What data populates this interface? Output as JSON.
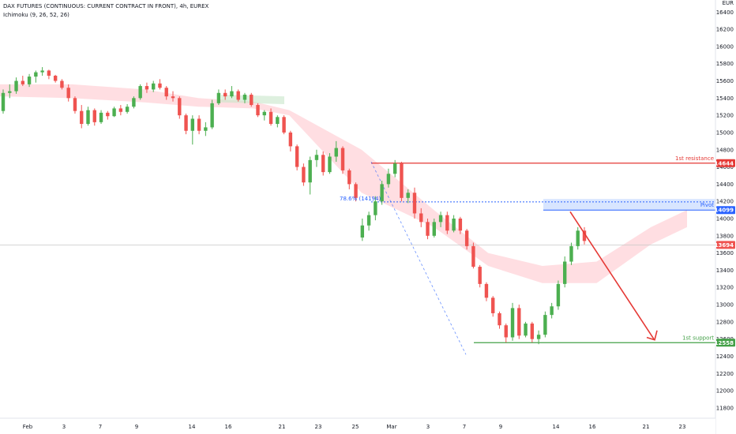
{
  "header": {
    "title": "DAX FUTURES (CONTINUOUS: CURRENT CONTRACT IN FRONT), 4h, EUREX",
    "indicator": "Ichimoku (9, 26, 52, 26)"
  },
  "colors": {
    "up": "#26a69a",
    "down": "#ef5350",
    "up_candle": "#4caf50",
    "resistance": "#e53935",
    "support": "#43a047",
    "pivot": "#2962ff",
    "cloud_bear": "#ffcdd2",
    "cloud_bull": "#c8e6c9",
    "current_price": "#ef5350"
  },
  "chart_data": {
    "type": "candlestick",
    "currency": "EUR",
    "ylim": [
      11680,
      16540
    ],
    "y_ticks": [
      11800,
      12000,
      12200,
      12400,
      12600,
      12800,
      13000,
      13200,
      13400,
      13600,
      13800,
      14000,
      14200,
      14400,
      14600,
      14800,
      15000,
      15200,
      15400,
      15600,
      15800,
      16000,
      16200,
      16400
    ],
    "x_ticks": [
      {
        "label": "Feb",
        "bar": 0
      },
      {
        "label": "3",
        "bar": 10
      },
      {
        "label": "7",
        "bar": 15
      },
      {
        "label": "9",
        "bar": 20
      },
      {
        "label": "14",
        "bar": 30
      },
      {
        "label": "16",
        "bar": 35
      },
      {
        "label": "21",
        "bar": 45
      },
      {
        "label": "23",
        "bar": 50
      },
      {
        "label": "25",
        "bar": 55
      },
      {
        "label": "Mar",
        "bar": 60
      },
      {
        "label": "3",
        "bar": 65
      },
      {
        "label": "7",
        "bar": 70
      },
      {
        "label": "9",
        "bar": 75
      },
      {
        "label": "14",
        "bar": 85
      },
      {
        "label": "16",
        "bar": 90
      },
      {
        "label": "21",
        "bar": 100
      },
      {
        "label": "23",
        "bar": 105
      }
    ],
    "candles": [
      [
        15250,
        15500,
        15220,
        15460
      ],
      [
        15460,
        15560,
        15400,
        15480
      ],
      [
        15480,
        15640,
        15450,
        15600
      ],
      [
        15600,
        15660,
        15540,
        15560
      ],
      [
        15560,
        15680,
        15530,
        15650
      ],
      [
        15650,
        15720,
        15580,
        15700
      ],
      [
        15700,
        15760,
        15660,
        15720
      ],
      [
        15720,
        15730,
        15620,
        15660
      ],
      [
        15660,
        15670,
        15580,
        15600
      ],
      [
        15600,
        15620,
        15500,
        15520
      ],
      [
        15520,
        15560,
        15360,
        15400
      ],
      [
        15400,
        15420,
        15220,
        15250
      ],
      [
        15250,
        15320,
        15050,
        15100
      ],
      [
        15100,
        15300,
        15080,
        15260
      ],
      [
        15260,
        15280,
        15080,
        15120
      ],
      [
        15120,
        15260,
        15100,
        15230
      ],
      [
        15230,
        15250,
        15150,
        15190
      ],
      [
        15190,
        15300,
        15180,
        15280
      ],
      [
        15280,
        15320,
        15200,
        15240
      ],
      [
        15240,
        15330,
        15220,
        15300
      ],
      [
        15300,
        15420,
        15280,
        15400
      ],
      [
        15400,
        15560,
        15380,
        15540
      ],
      [
        15540,
        15580,
        15460,
        15500
      ],
      [
        15500,
        15600,
        15470,
        15570
      ],
      [
        15570,
        15620,
        15500,
        15520
      ],
      [
        15520,
        15540,
        15380,
        15420
      ],
      [
        15420,
        15480,
        15360,
        15400
      ],
      [
        15400,
        15420,
        15160,
        15200
      ],
      [
        15200,
        15220,
        14980,
        15020
      ],
      [
        15020,
        15200,
        14860,
        15160
      ],
      [
        15160,
        15200,
        14980,
        15020
      ],
      [
        15020,
        15120,
        14960,
        15060
      ],
      [
        15060,
        15380,
        15040,
        15340
      ],
      [
        15340,
        15500,
        15320,
        15460
      ],
      [
        15460,
        15500,
        15380,
        15420
      ],
      [
        15420,
        15540,
        15400,
        15480
      ],
      [
        15480,
        15500,
        15360,
        15380
      ],
      [
        15380,
        15460,
        15340,
        15440
      ],
      [
        15440,
        15460,
        15300,
        15320
      ],
      [
        15320,
        15340,
        15180,
        15200
      ],
      [
        15200,
        15260,
        15140,
        15240
      ],
      [
        15240,
        15280,
        15080,
        15100
      ],
      [
        15100,
        15200,
        15060,
        15180
      ],
      [
        15180,
        15200,
        14980,
        15000
      ],
      [
        15000,
        15020,
        14780,
        14840
      ],
      [
        14840,
        14860,
        14560,
        14600
      ],
      [
        14600,
        14640,
        14380,
        14420
      ],
      [
        14420,
        14720,
        14280,
        14680
      ],
      [
        14680,
        14800,
        14600,
        14740
      ],
      [
        14740,
        14780,
        14500,
        14540
      ],
      [
        14540,
        14760,
        14520,
        14720
      ],
      [
        14720,
        14900,
        14660,
        14820
      ],
      [
        14820,
        14840,
        14520,
        14560
      ],
      [
        14560,
        14580,
        14340,
        14400
      ],
      [
        14400,
        14420,
        14200,
        14240
      ],
      [
        13780,
        14000,
        13740,
        13920
      ],
      [
        13920,
        14080,
        13860,
        14040
      ],
      [
        14040,
        14260,
        13980,
        14200
      ],
      [
        14200,
        14440,
        14160,
        14400
      ],
      [
        14400,
        14580,
        14360,
        14520
      ],
      [
        14520,
        14680,
        14480,
        14640
      ],
      [
        14640,
        14660,
        14200,
        14240
      ],
      [
        14240,
        14340,
        14180,
        14300
      ],
      [
        14300,
        14360,
        14000,
        14060
      ],
      [
        14060,
        14120,
        13900,
        13960
      ],
      [
        13960,
        14000,
        13760,
        13800
      ],
      [
        13800,
        14000,
        13780,
        13960
      ],
      [
        13960,
        14080,
        13900,
        14040
      ],
      [
        14040,
        14080,
        13820,
        13860
      ],
      [
        13860,
        14040,
        13840,
        14000
      ],
      [
        14000,
        14020,
        13820,
        13860
      ],
      [
        13860,
        13880,
        13640,
        13680
      ],
      [
        13680,
        13720,
        13420,
        13440
      ],
      [
        13440,
        13460,
        13200,
        13240
      ],
      [
        13240,
        13260,
        13040,
        13080
      ],
      [
        13080,
        13100,
        12860,
        12900
      ],
      [
        12900,
        12920,
        12720,
        12760
      ],
      [
        12760,
        12780,
        12560,
        12620
      ],
      [
        12620,
        13020,
        12580,
        12960
      ],
      [
        12960,
        13000,
        12600,
        12640
      ],
      [
        12640,
        12800,
        12620,
        12780
      ],
      [
        12780,
        12800,
        12560,
        12600
      ],
      [
        12600,
        12700,
        12540,
        12650
      ],
      [
        12650,
        12920,
        12620,
        12880
      ],
      [
        12880,
        13020,
        12840,
        12980
      ],
      [
        12980,
        13280,
        12940,
        13240
      ],
      [
        13240,
        13560,
        13200,
        13500
      ],
      [
        13500,
        13720,
        13460,
        13680
      ],
      [
        13680,
        13900,
        13640,
        13860
      ],
      [
        13860,
        13900,
        13700,
        13740
      ]
    ],
    "cloud_upper": [
      15600,
      15600,
      15580,
      15560,
      15540,
      15520,
      15500,
      15460,
      15420,
      15380,
      15360,
      15340,
      15360,
      15380,
      15400,
      15420,
      15440,
      15460,
      15480,
      15500
    ],
    "cloud_lower": [
      15450,
      15440,
      15420,
      15400,
      15380,
      15360,
      15340,
      15320,
      15300,
      15300,
      15320,
      15330,
      15340,
      15340,
      15350,
      15360,
      15380,
      15400,
      15420,
      15440
    ],
    "levels": [
      {
        "name": "1st resistance",
        "price": 14644,
        "tag": "14644"
      },
      {
        "name": "Pivot",
        "price": 14099,
        "tag": "14099"
      },
      {
        "name": "1st support",
        "price": 12558,
        "tag": "12558"
      },
      {
        "name": "current",
        "price": 13694,
        "tag": "13694"
      }
    ],
    "fib_label": "78.6% (14194)",
    "fib_price": 14194
  }
}
